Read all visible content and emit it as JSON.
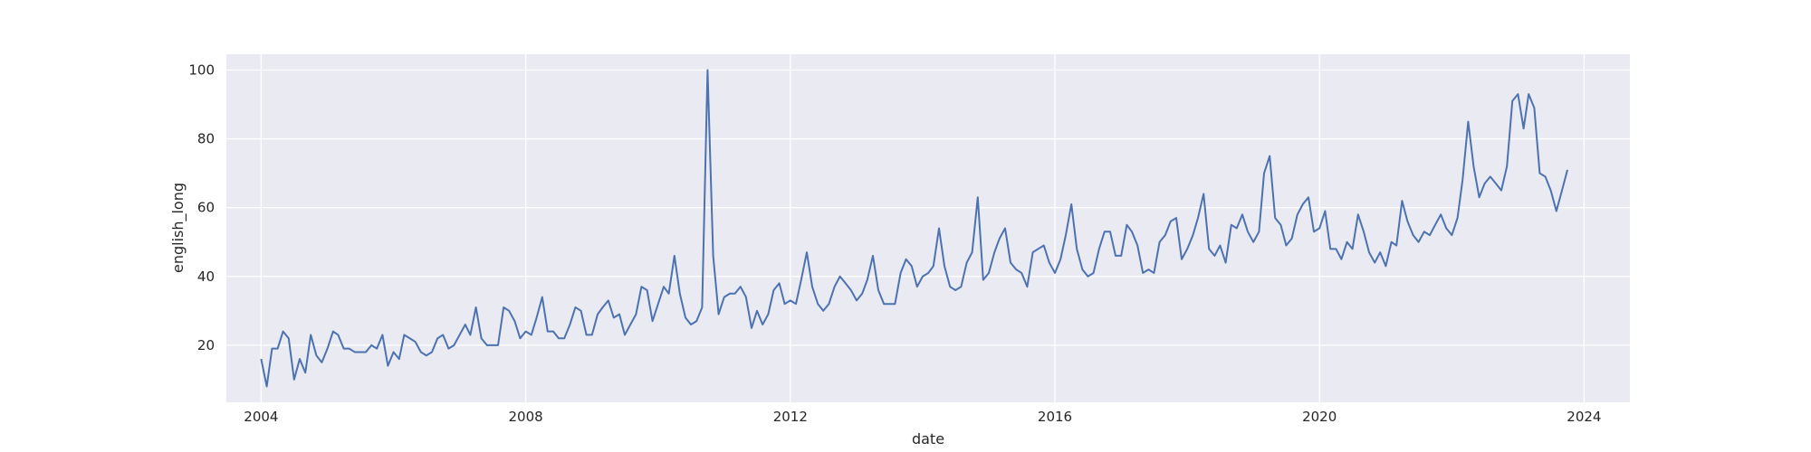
{
  "chart_data": {
    "type": "line",
    "title": "",
    "xlabel": "date",
    "ylabel": "english_long",
    "xlim": [
      "2003-06-23",
      "2024-09-10"
    ],
    "ylim": [
      3.4,
      104.6
    ],
    "x_ticks": [
      "2004",
      "2008",
      "2012",
      "2016",
      "2020",
      "2024"
    ],
    "y_ticks": [
      "20",
      "40",
      "60",
      "80",
      "100"
    ],
    "grid": true,
    "legend": "none",
    "background_color": "#eaeaf2",
    "grid_color": "#ffffff",
    "line_color": "#4c72b0",
    "series": [
      {
        "start": "2004-01",
        "frequency": "monthly",
        "values": [
          16,
          8,
          19,
          19,
          24,
          22,
          10,
          16,
          12,
          23,
          17,
          15,
          19,
          24,
          23,
          19,
          19,
          18,
          18,
          18,
          20,
          19,
          23,
          14,
          18,
          16,
          23,
          22,
          21,
          18,
          17,
          18,
          22,
          23,
          19,
          20,
          23,
          26,
          23,
          31,
          22,
          20,
          20,
          20,
          31,
          30,
          27,
          22,
          24,
          23,
          28,
          34,
          24,
          24,
          22,
          22,
          26,
          31,
          30,
          23,
          23,
          29,
          31,
          33,
          28,
          29,
          23,
          26,
          29,
          37,
          36,
          27,
          32,
          37,
          35,
          46,
          35,
          28,
          26,
          27,
          31,
          100,
          46,
          29,
          34,
          35,
          35,
          37,
          34,
          25,
          30,
          26,
          29,
          36,
          38,
          32,
          33,
          32,
          39,
          47,
          37,
          32,
          30,
          32,
          37,
          40,
          38,
          36,
          33,
          35,
          39,
          46,
          36,
          32,
          32,
          32,
          41,
          45,
          43,
          37,
          40,
          41,
          43,
          54,
          43,
          37,
          36,
          37,
          44,
          47,
          63,
          39,
          41,
          47,
          51,
          54,
          44,
          42,
          41,
          37,
          47,
          48,
          49,
          44,
          41,
          45,
          52,
          61,
          48,
          42,
          40,
          41,
          48,
          53,
          53,
          46,
          46,
          55,
          53,
          49,
          41,
          42,
          41,
          50,
          52,
          56,
          57,
          45,
          48,
          52,
          57,
          64,
          48,
          46,
          49,
          44,
          55,
          54,
          58,
          53,
          50,
          53,
          70,
          75,
          57,
          55,
          49,
          51,
          58,
          61,
          63,
          53,
          54,
          59,
          48,
          48,
          45,
          50,
          48,
          58,
          53,
          47,
          44,
          47,
          43,
          50,
          49,
          62,
          56,
          52,
          50,
          53,
          52,
          55,
          58,
          54,
          52,
          57,
          68,
          85,
          72,
          63,
          67,
          69,
          67,
          65,
          72,
          91,
          93,
          83,
          93,
          89,
          70,
          69,
          65,
          59,
          65,
          71
        ]
      }
    ]
  }
}
